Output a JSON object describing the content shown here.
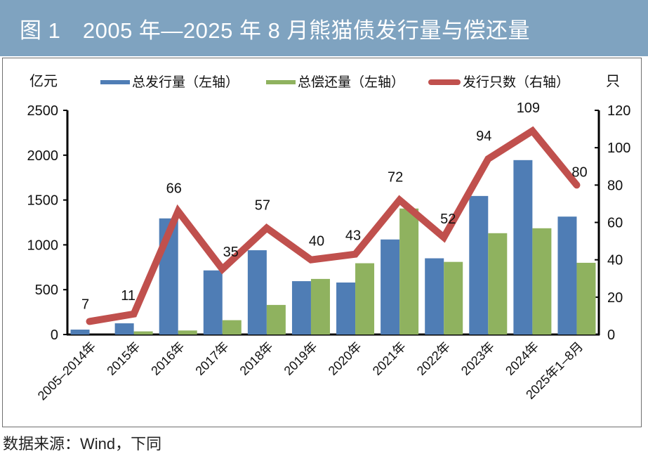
{
  "title": "图 1　2005 年—2025 年 8 月熊猫债发行量与偿还量",
  "source_note": "数据来源：Wind，下同",
  "colors": {
    "title_bar": "#7fa3c0",
    "issuance_bar": "#4f7db5",
    "repayment_bar": "#8fb25f",
    "count_line": "#c0504d"
  },
  "chart_data": {
    "type": "bar",
    "title": "2005 年—2025 年 8 月熊猫债发行量与偿还量",
    "left_axis_unit": "亿元",
    "right_axis_unit": "只",
    "ylim": [
      0,
      2500
    ],
    "ylim_right": [
      0,
      120
    ],
    "yticks": [
      "0",
      "500",
      "1000",
      "1500",
      "2000",
      "2500"
    ],
    "yticks_right": [
      "0",
      "20",
      "40",
      "60",
      "80",
      "100",
      "120"
    ],
    "grid": false,
    "legend_position": "top",
    "categories": [
      "2005–2014年",
      "2015年",
      "2016年",
      "2017年",
      "2018年",
      "2019年",
      "2020年",
      "2021年",
      "2022年",
      "2023年",
      "2024年",
      "2025年1–8月"
    ],
    "series": [
      {
        "name": "总发行量（左轴）",
        "type": "bar",
        "axis": "left",
        "values": [
          55,
          125,
          1295,
          715,
          940,
          595,
          580,
          1060,
          850,
          1545,
          1945,
          1315
        ]
      },
      {
        "name": "总偿还量（左轴）",
        "type": "bar",
        "axis": "left",
        "values": [
          0,
          35,
          45,
          160,
          330,
          620,
          795,
          1405,
          810,
          1130,
          1185,
          800
        ]
      },
      {
        "name": "发行只数（右轴）",
        "type": "line",
        "axis": "right",
        "values": [
          7,
          11,
          66,
          35,
          57,
          40,
          43,
          72,
          52,
          94,
          109,
          80
        ],
        "data_labels": [
          "7",
          "11",
          "66",
          "35",
          "57",
          "40",
          "43",
          "72",
          "52",
          "94",
          "109",
          "80"
        ]
      }
    ]
  }
}
